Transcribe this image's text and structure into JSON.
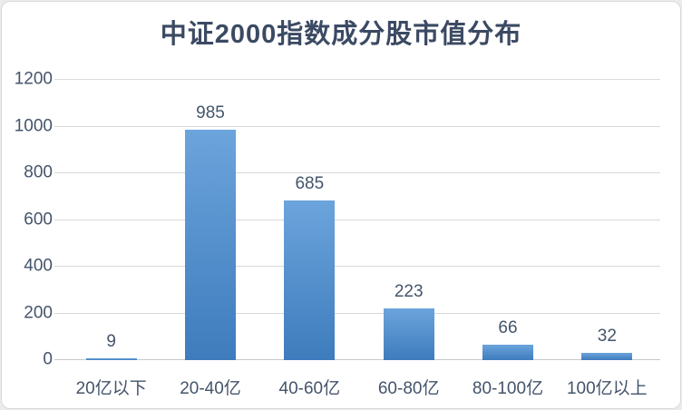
{
  "chart_data": {
    "type": "bar",
    "title": "中证2000指数成分股市值分布",
    "categories": [
      "20亿以下",
      "20-40亿",
      "40-60亿",
      "60-80亿",
      "80-100亿",
      "100亿以上"
    ],
    "values": [
      9,
      985,
      685,
      223,
      66,
      32
    ],
    "xlabel": "",
    "ylabel": "",
    "ylim": [
      0,
      1200
    ],
    "yticks": [
      0,
      200,
      400,
      600,
      800,
      1000,
      1200
    ],
    "grid": "horizontal",
    "legend_position": "none",
    "data_labels_shown": true
  },
  "colors": {
    "bar_top": "#6CA4DC",
    "bar_bottom": "#3E7CBD",
    "title_text": "#3B4A63",
    "axis_text": "#44546A",
    "gridline": "#D9D9D9",
    "axis_line": "#C6C9CC",
    "frame_border": "#D9D9DC",
    "page_bg": "#ECECEF",
    "card_bg": "#FFFFFF"
  }
}
